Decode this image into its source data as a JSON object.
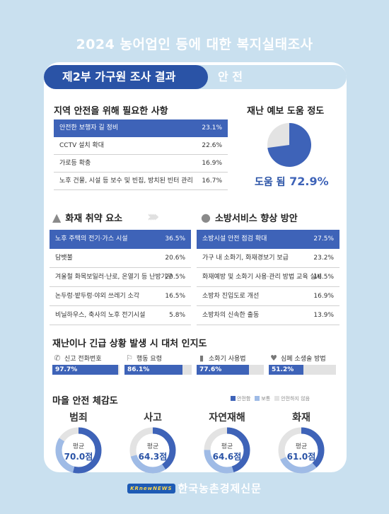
{
  "top_title": "2024 농어업인 등에 대한 복지실태조사",
  "header": {
    "title": "제2부 가구원 조사 결과",
    "tag": "안 전"
  },
  "needs": {
    "title": "지역 안전을 위해 필요한 사항",
    "rows": [
      {
        "label": "안전한 보행자 길 정비",
        "value": "23.1%"
      },
      {
        "label": "CCTV 설치 확대",
        "value": "22.6%"
      },
      {
        "label": "가로등 확충",
        "value": "16.9%"
      },
      {
        "label": "노후 건물, 시설 등 보수 및 빈집, 방치된 빈터 관리",
        "value": "16.7%"
      }
    ]
  },
  "forecast": {
    "title": "재난 예보 도움 정도",
    "caption": "도움 됨",
    "value": "72.9%",
    "fraction": 0.729,
    "fill_color": "#3e63b8",
    "rest_color": "#e3e3e3"
  },
  "fire": {
    "title": "화재 취약 요소",
    "icon": "fire-icon",
    "rows": [
      {
        "label": "노후 주택의 전기·가스 시설",
        "value": "36.5%"
      },
      {
        "label": "담뱃불",
        "value": "20.6%"
      },
      {
        "label": "겨울철 화목보일러·난로, 온열기 등 난방기구",
        "value": "20.5%"
      },
      {
        "label": "논두렁·밭두렁·야외 쓰레기 소각",
        "value": "16.5%"
      },
      {
        "label": "비닐하우스, 축사의 노후 전기시설",
        "value": "5.8%"
      }
    ]
  },
  "fireservice": {
    "title": "소방서비스 향상 방안",
    "icon": "firefighter-icon",
    "rows": [
      {
        "label": "소방시설 안전 점검 확대",
        "value": "27.5%"
      },
      {
        "label": "가구 내 소화기, 화재경보기 보급",
        "value": "23.2%"
      },
      {
        "label": "화재예방 및 소화기 사용·관리 방법 교육 실시",
        "value": "18.5%"
      },
      {
        "label": "소방차 진입도로 개선",
        "value": "16.9%"
      },
      {
        "label": "소방차의 신속한 출동",
        "value": "13.9%"
      }
    ]
  },
  "awareness": {
    "title": "재난이나 긴급 상황 발생 시 대처 인지도",
    "items": [
      {
        "label": "신고 전화번호",
        "value": "97.7%",
        "fraction": 0.977,
        "icon": "phone-icon"
      },
      {
        "label": "행동 요령",
        "value": "86.1%",
        "fraction": 0.861,
        "icon": "running-person-icon"
      },
      {
        "label": "소화기 사용법",
        "value": "77.6%",
        "fraction": 0.776,
        "icon": "fire-extinguisher-icon"
      },
      {
        "label": "심폐 소생술 방법",
        "value": "51.2%",
        "fraction": 0.512,
        "icon": "cpr-icon"
      }
    ]
  },
  "safety_feel": {
    "title": "마을 안전 체감도",
    "legend": [
      {
        "label": "안전함",
        "color": "#3e63b8"
      },
      {
        "label": "보통",
        "color": "#9fbbe6"
      },
      {
        "label": "안전하지 않음",
        "color": "#e3e3e3"
      }
    ],
    "avg_label": "평균",
    "items": [
      {
        "title": "범죄",
        "avg": "70.0점",
        "score": 70.0
      },
      {
        "title": "사고",
        "avg": "64.3점",
        "score": 64.3
      },
      {
        "title": "자연재해",
        "avg": "64.6점",
        "score": 64.6
      },
      {
        "title": "화재",
        "avg": "61.0점",
        "score": 61.0
      }
    ]
  },
  "footer": {
    "logo": "KRnewNEWS",
    "text": "한국농촌경제신문"
  }
}
